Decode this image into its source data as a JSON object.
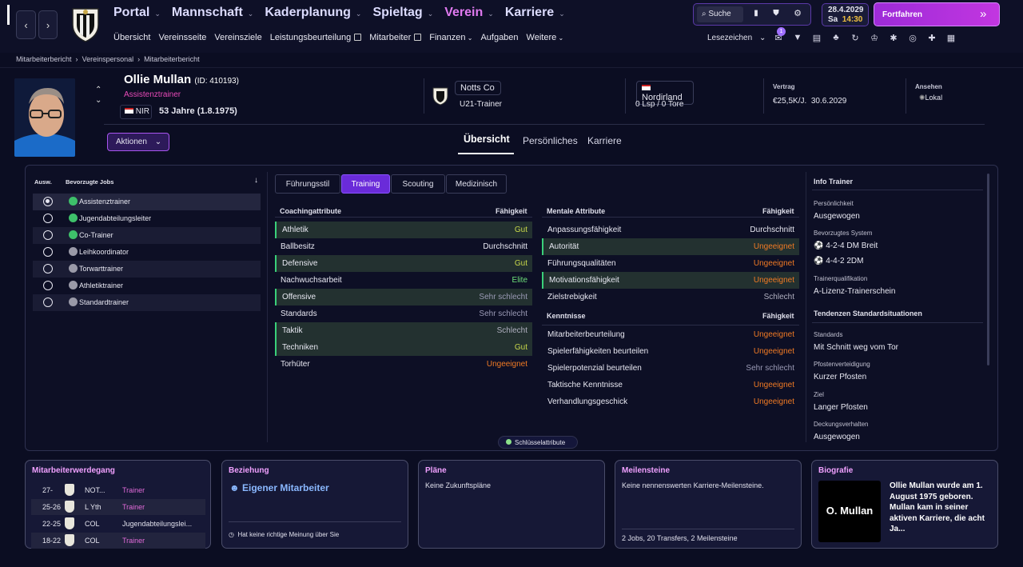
{
  "topbar": {
    "nav": [
      {
        "label": "Portal",
        "active": false
      },
      {
        "label": "Mannschaft",
        "active": false
      },
      {
        "label": "Kaderplanung",
        "active": false
      },
      {
        "label": "Spieltag",
        "active": false
      },
      {
        "label": "Verein",
        "active": true
      },
      {
        "label": "Karriere",
        "active": false
      }
    ],
    "subnav": [
      "Übersicht",
      "Vereinsseite",
      "Vereinsziele",
      "Leistungsbeurteilung",
      "Mitarbeiter",
      "Finanzen",
      "Aufgaben",
      "Weitere"
    ],
    "search_label": "Suche",
    "date": "28.4.2029",
    "day": "Sa",
    "time": "14:30",
    "continue_label": "Fortfahren",
    "bookmarks_label": "Lesezeichen",
    "badge_count": "1",
    "accent": "#8b2fe0"
  },
  "breadcrumb": [
    "Mitarbeiterbericht",
    "Vereinspersonal",
    "Mitarbeiterbericht"
  ],
  "profile": {
    "name": "Ollie Mullan",
    "id": "(ID: 410193)",
    "role": "Assistenztrainer",
    "nationality_code": "NIR",
    "age": "53 Jahre (1.8.1975)",
    "club": "Notts Co",
    "club_role": "U21-Trainer",
    "nation": "Nordirland",
    "caps": "0 Lsp / 0 Tore",
    "contract_title": "Vertrag",
    "contract": "€25,5K/J.",
    "contract_end": "30.6.2029",
    "reputation_title": "Ansehen",
    "reputation": "Lokal",
    "actions_label": "Aktionen"
  },
  "tabs": [
    {
      "label": "Übersicht",
      "active": true
    },
    {
      "label": "Persönliches",
      "active": false
    },
    {
      "label": "Karriere",
      "active": false
    }
  ],
  "jobs": {
    "col_select": "Ausw.",
    "col_jobs": "Bevorzugte Jobs",
    "items": [
      {
        "label": "Assistenztrainer",
        "selected": true,
        "green": true
      },
      {
        "label": "Jugendabteilungsleiter",
        "selected": false,
        "green": true
      },
      {
        "label": "Co-Trainer",
        "selected": false,
        "green": true
      },
      {
        "label": "Leihkoordinator",
        "selected": false,
        "green": false
      },
      {
        "label": "Torwarttrainer",
        "selected": false,
        "green": false
      },
      {
        "label": "Athletiktrainer",
        "selected": false,
        "green": false
      },
      {
        "label": "Standardtrainer",
        "selected": false,
        "green": false
      }
    ]
  },
  "subtabs": [
    {
      "label": "Führungsstil",
      "active": false
    },
    {
      "label": "Training",
      "active": true
    },
    {
      "label": "Scouting",
      "active": false
    },
    {
      "label": "Medizinisch",
      "active": false
    }
  ],
  "coaching": {
    "title": "Coachingattribute",
    "col": "Fähigkeit",
    "rows": [
      {
        "name": "Athletik",
        "value": "Gut",
        "cls": "gut",
        "hl": true
      },
      {
        "name": "Ballbesitz",
        "value": "Durchschnitt",
        "cls": "ds",
        "hl": false
      },
      {
        "name": "Defensive",
        "value": "Gut",
        "cls": "gut",
        "hl": true
      },
      {
        "name": "Nachwuchsarbeit",
        "value": "Elite",
        "cls": "elite",
        "hl": false
      },
      {
        "name": "Offensive",
        "value": "Sehr schlecht",
        "cls": "ss",
        "hl": true
      },
      {
        "name": "Standards",
        "value": "Sehr schlecht",
        "cls": "ss",
        "hl": false
      },
      {
        "name": "Taktik",
        "value": "Schlecht",
        "cls": "sch",
        "hl": true
      },
      {
        "name": "Techniken",
        "value": "Gut",
        "cls": "gut",
        "hl": true
      },
      {
        "name": "Torhüter",
        "value": "Ungeeignet",
        "cls": "ung",
        "hl": false
      }
    ]
  },
  "mental": {
    "title": "Mentale Attribute",
    "col": "Fähigkeit",
    "rows": [
      {
        "name": "Anpassungsfähigkeit",
        "value": "Durchschnitt",
        "cls": "ds",
        "hl": false
      },
      {
        "name": "Autorität",
        "value": "Ungeeignet",
        "cls": "ung",
        "hl": true
      },
      {
        "name": "Führungsqualitäten",
        "value": "Ungeeignet",
        "cls": "ung",
        "hl": false
      },
      {
        "name": "Motivationsfähigkeit",
        "value": "Ungeeignet",
        "cls": "ung",
        "hl": true
      },
      {
        "name": "Zielstrebigkeit",
        "value": "Schlecht",
        "cls": "sch",
        "hl": false
      }
    ]
  },
  "knowledge": {
    "title": "Kenntnisse",
    "col": "Fähigkeit",
    "rows": [
      {
        "name": "Mitarbeiterbeurteilung",
        "value": "Ungeeignet",
        "cls": "ung",
        "hl": false
      },
      {
        "name": "Spielerfähigkeiten beurteilen",
        "value": "Ungeeignet",
        "cls": "ung",
        "hl": false
      },
      {
        "name": "Spielerpotenzial beurteilen",
        "value": "Sehr schlecht",
        "cls": "ss",
        "hl": false
      },
      {
        "name": "Taktische Kenntnisse",
        "value": "Ungeeignet",
        "cls": "ung",
        "hl": false
      },
      {
        "name": "Verhandlungsgeschick",
        "value": "Ungeeignet",
        "cls": "ung",
        "hl": false
      }
    ]
  },
  "key_attr_label": "Schlüsselattribute",
  "info": {
    "title": "Info Trainer",
    "personality_t": "Persönlichkeit",
    "personality": "Ausgewogen",
    "system_t": "Bevorzugtes System",
    "system1": "4-2-4 DM Breit",
    "system2": "4-4-2 2DM",
    "qual_t": "Trainerqualifikation",
    "qual": "A-Lizenz-Trainerschein",
    "set_title": "Tendenzen Standardsituationen",
    "standards_t": "Standards",
    "standards": "Mit Schnitt weg vom Tor",
    "post_t": "Pfostenverteidigung",
    "post": "Kurzer Pfosten",
    "goal_t": "Ziel",
    "goal": "Langer Pfosten",
    "cover_t": "Deckungsverhalten",
    "cover": "Ausgewogen"
  },
  "cards": {
    "career": {
      "title": "Mitarbeiterwerdegang",
      "rows": [
        {
          "years": "27-",
          "club": "NOT...",
          "role": "Trainer"
        },
        {
          "years": "25-26",
          "club": "L Yth",
          "role": "Trainer"
        },
        {
          "years": "22-25",
          "club": "COL",
          "role": "Jugendabteilungslei..."
        },
        {
          "years": "18-22",
          "club": "COL",
          "role": "Trainer"
        }
      ]
    },
    "relation": {
      "title": "Beziehung",
      "headline": "Eigener Mitarbeiter",
      "note": "Hat keine richtige Meinung über Sie"
    },
    "plans": {
      "title": "Pläne",
      "text": "Keine Zukunftspläne"
    },
    "milestones": {
      "title": "Meilensteine",
      "text": "Keine nennenswerten Karriere-Meilensteine.",
      "footer": "2 Jobs, 20 Transfers, 2 Meilensteine"
    },
    "bio": {
      "title": "Biografie",
      "portrait_label": "O. Mullan",
      "text": "Ollie Mullan wurde am 1. August 1975 geboren. Mullan kam in seiner aktiven Karriere, die acht Ja..."
    }
  }
}
